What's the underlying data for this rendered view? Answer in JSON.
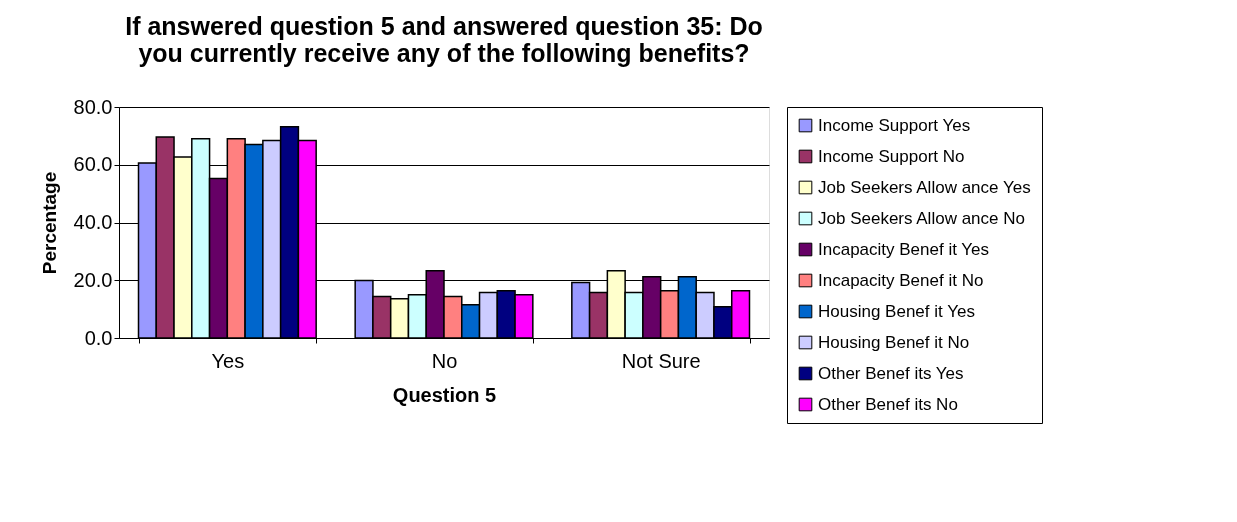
{
  "chart_data": {
    "type": "bar",
    "title": [
      "If answered question 5 and answered question 35: Do",
      "you currently receive any of the following benefits?"
    ],
    "xlabel": "Question 5",
    "ylabel": "Percentage",
    "categories": [
      "Yes",
      "No",
      "Not Sure"
    ],
    "series": [
      {
        "name": "Income Support Yes",
        "color": "#9999ff",
        "values": [
          60.6,
          19.9,
          19.2
        ]
      },
      {
        "name": "Income Support No",
        "color": "#993366",
        "values": [
          69.6,
          14.4,
          15.8
        ]
      },
      {
        "name": "Job Seekers Allow ance Yes",
        "color": "#ffffcc",
        "values": [
          62.7,
          13.6,
          23.3
        ]
      },
      {
        "name": "Job Seekers Allow ance No",
        "color": "#ccffff",
        "values": [
          69.0,
          15.0,
          15.8
        ]
      },
      {
        "name": "Incapacity Benef it Yes",
        "color": "#660066",
        "values": [
          55.2,
          23.3,
          21.2
        ]
      },
      {
        "name": "Incapacity Benef it No",
        "color": "#ff8080",
        "values": [
          69.0,
          14.4,
          16.4
        ]
      },
      {
        "name": "Housing Benef it Yes",
        "color": "#0066cc",
        "values": [
          67.0,
          11.5,
          21.2
        ]
      },
      {
        "name": "Housing Benef it No",
        "color": "#ccccff",
        "values": [
          68.4,
          15.8,
          15.8
        ]
      },
      {
        "name": "Other Benef its Yes",
        "color": "#000080",
        "values": [
          73.2,
          16.4,
          10.8
        ]
      },
      {
        "name": "Other Benef its No",
        "color": "#ff00ff",
        "values": [
          68.4,
          15.0,
          16.4
        ]
      }
    ],
    "ylim": [
      0,
      80
    ],
    "yticks": [
      {
        "value": 0,
        "label": "0.0"
      },
      {
        "value": 20,
        "label": "20.0"
      },
      {
        "value": 40,
        "label": "40.0"
      },
      {
        "value": 60,
        "label": "60.0"
      },
      {
        "value": 80,
        "label": "80.0"
      }
    ],
    "grid": "y",
    "legend": "right"
  }
}
